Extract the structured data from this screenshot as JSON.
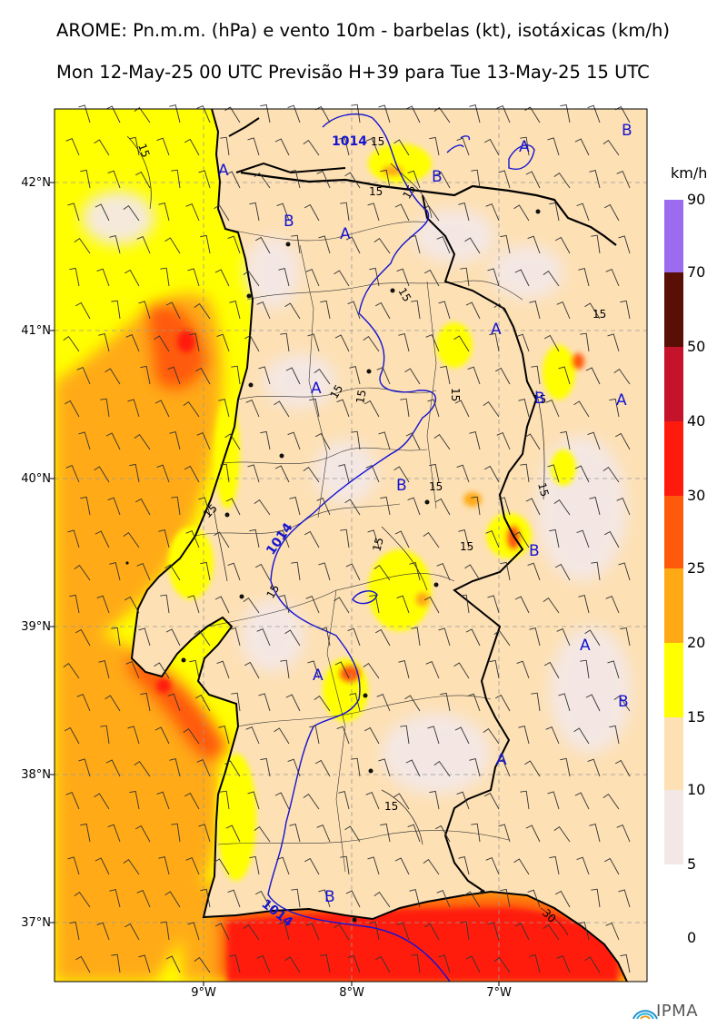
{
  "header": {
    "title_line1": "AROME: Pn.m.m. (hPa) e vento 10m - barbelas (kt), isotáxicas (km/h)",
    "title_line2": "Mon 12-May-25 00 UTC Previsão H+39 para Tue 13-May-25 15 UTC"
  },
  "colorbar": {
    "unit": "km/h",
    "levels": [
      "90",
      "70",
      "50",
      "40",
      "30",
      "25",
      "20",
      "15",
      "10",
      "5",
      "0"
    ],
    "colors": {
      "70-90": "#9b6cf0",
      "50-70": "#5a0f06",
      "40-50": "#c4132a",
      "30-40": "#ff1a0e",
      "25-30": "#ff5a0b",
      "20-25": "#ffaa14",
      "15-20": "#ffff00",
      "10-15": "#fde0b4",
      "5-10": "#f4e8e6",
      "0-5": "#ffffff"
    }
  },
  "axes": {
    "lat_labels": [
      "42°N",
      "41°N",
      "40°N",
      "39°N",
      "38°N",
      "37°N"
    ],
    "lon_labels": [
      "9°W",
      "8°W",
      "7°W"
    ]
  },
  "map_labels": {
    "isobars": [
      "1014",
      "1014",
      "1014"
    ],
    "isotachs": [
      "15",
      "15",
      "15",
      "15",
      "15",
      "15",
      "15",
      "15",
      "15",
      "15",
      "15",
      "15",
      "15",
      "15",
      "15",
      "15",
      "15",
      "30"
    ],
    "pressure_centers": [
      "A",
      "A",
      "A",
      "A",
      "A",
      "A",
      "A",
      "A",
      "A",
      "B",
      "B",
      "B",
      "B",
      "B",
      "B",
      "B",
      "B"
    ]
  },
  "logo": {
    "text": "IPMA"
  }
}
